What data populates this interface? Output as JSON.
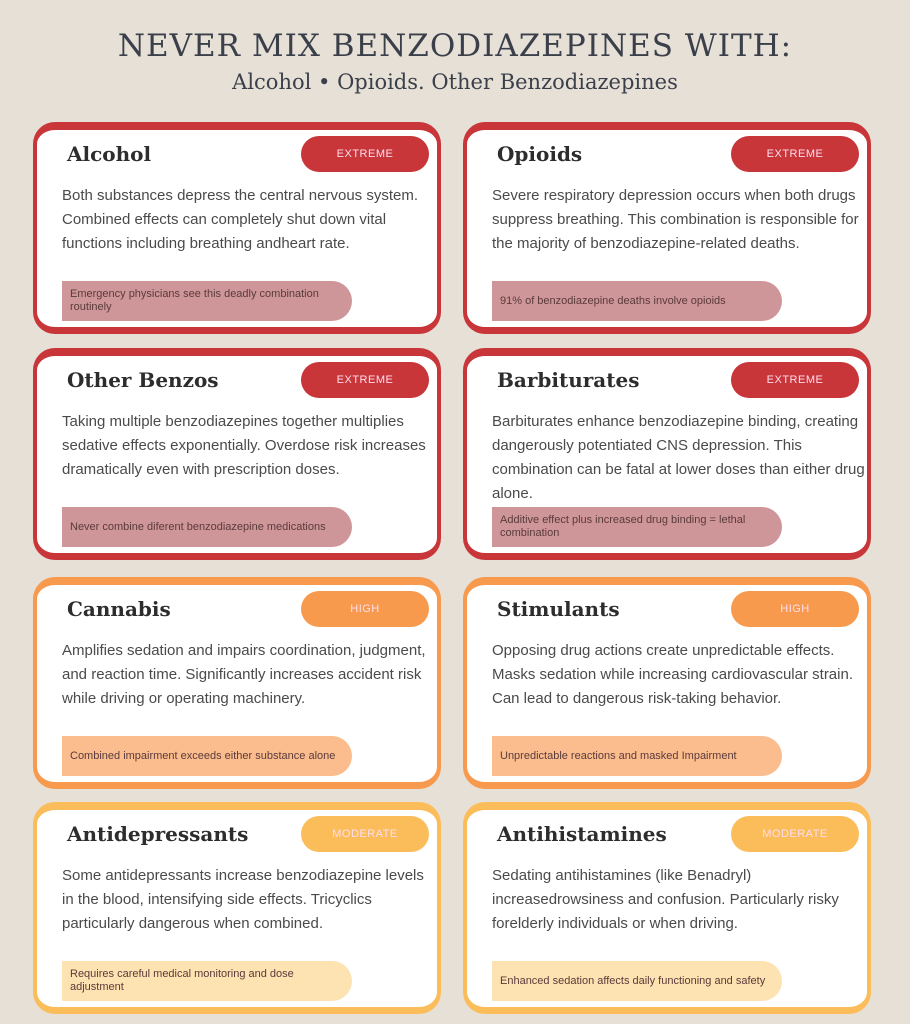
{
  "title": "NEVER MIX BENZODIAZEPINES WITH:",
  "subtitle": "Alcohol • Opioids. Other Benzodiazepines",
  "colors": {
    "extreme": "#c8363a",
    "extreme_note": "#cf969a",
    "high": "#f79a4e",
    "high_note": "#fbbd8e",
    "moderate": "#fbbd5a",
    "moderate_note": "#fde2b2",
    "background": "#e6e0d7"
  },
  "cards": [
    {
      "name": "Alcohol",
      "level": "EXTREME",
      "description": "Both substances depress the central nervous system. Combined effects can completely shut down vital functions including breathing andheart rate.",
      "note": "Emergency physicians see this deadly combination routinely"
    },
    {
      "name": "Opioids",
      "level": "EXTREME",
      "description": "Severe respiratory depression occurs when both drugs suppress breathing. This combination is responsible for the majority of benzodiazepine-related deaths.",
      "note": "91% of benzodiazepine deaths involve opioids"
    },
    {
      "name": "Other Benzos",
      "level": "EXTREME",
      "description": "Taking multiple benzodiazepines together multiplies sedative effects exponentially. Overdose risk increases dramatically even with prescription doses.",
      "note": "Never combine diferent benzodiazepine medications"
    },
    {
      "name": "Barbiturates",
      "level": "EXTREME",
      "description": "Barbiturates enhance benzodiazepine binding, creating dangerously potentiated CNS depression. This combination can be fatal at lower doses than either drug alone.",
      "note": "Additive effect plus increased drug binding = lethal combination"
    },
    {
      "name": "Cannabis",
      "level": "HIGH",
      "description": "Amplifies sedation and impairs coordination, judgment, and reaction time. Significantly increases accident risk while driving or operating machinery.",
      "note": "Combined impairment exceeds either substance alone"
    },
    {
      "name": "Stimulants",
      "level": "HIGH",
      "description": "Opposing drug actions create unpredictable effects. Masks sedation while increasing cardiovascular strain. Can lead to dangerous risk-taking behavior.",
      "note": "Unpredictable reactions and masked Impairment"
    },
    {
      "name": "Antidepressants",
      "level": "MODERATE",
      "description": "Some antidepressants increase benzodiazepine levels in the blood, intensifying side effects. Tricyclics particularly dangerous when combined.",
      "note": "Requires careful medical monitoring and dose adjustment"
    },
    {
      "name": "Antihistamines",
      "level": "MODERATE",
      "description": "Sedating antihistamines (like Benadryl) increasedrowsiness and confusion. Particularly risky forelderly individuals or when driving.",
      "note": "Enhanced sedation affects daily functioning and safety"
    }
  ]
}
